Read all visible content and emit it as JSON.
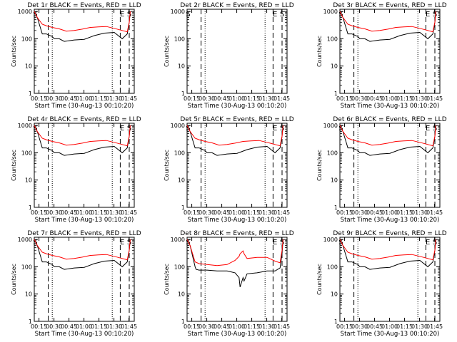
{
  "common": {
    "ylabel": "Counts/sec",
    "xlabel": "Start Time (30-Aug-13 00:10:20)",
    "xticks": [
      "00:15",
      "00:30",
      "00:45",
      "01:00",
      "01:15",
      "01:30",
      "01:45"
    ],
    "yticks": [
      "1",
      "10",
      "100",
      "1000"
    ],
    "colors": {
      "events": "#000000",
      "lld": "#ff0000"
    }
  },
  "chart_data": [
    {
      "type": "line",
      "title": "Det 1r BLACK = Events, RED = LLD",
      "x_unit": "minutes since 00:10:20",
      "xlim": [
        0,
        100
      ],
      "ylim": [
        1,
        1200
      ],
      "yscale": "log",
      "markers": [
        {
          "label": "S",
          "x": 1.0
        },
        {
          "label": "E",
          "x": 88.0
        },
        {
          "label": "S",
          "x": 95.0
        }
      ],
      "series": [
        {
          "name": "Events",
          "x": [
            0,
            3,
            8,
            9,
            12,
            18,
            20,
            25,
            30,
            40,
            50,
            60,
            70,
            80,
            88,
            93,
            95,
            96
          ],
          "y": [
            1000,
            600,
            150,
            150,
            150,
            120,
            100,
            100,
            80,
            90,
            95,
            130,
            160,
            170,
            100,
            150,
            400,
            1000
          ]
        },
        {
          "name": "LLD",
          "x": [
            0,
            3,
            8,
            12,
            18,
            25,
            32,
            40,
            48,
            56,
            64,
            72,
            80,
            88,
            93,
            95,
            96
          ],
          "y": [
            1000,
            600,
            340,
            300,
            260,
            230,
            190,
            200,
            225,
            260,
            270,
            280,
            240,
            200,
            180,
            400,
            1000
          ]
        }
      ]
    },
    {
      "type": "line",
      "title": "Det 2r BLACK = Events, RED = LLD",
      "x_unit": "minutes since 00:10:20",
      "xlim": [
        0,
        100
      ],
      "ylim": [
        1,
        1200
      ],
      "yscale": "log",
      "markers": [
        {
          "label": "S",
          "x": 1.0
        },
        {
          "label": "E",
          "x": 88.0
        },
        {
          "label": "S",
          "x": 95.0
        }
      ],
      "series": []
    },
    {
      "type": "line",
      "title": "Det 3r BLACK = Events, RED = LLD",
      "x_unit": "minutes since 00:10:20",
      "xlim": [
        0,
        100
      ],
      "ylim": [
        1,
        1200
      ],
      "yscale": "log",
      "markers": [
        {
          "label": "S",
          "x": 1.0
        },
        {
          "label": "E",
          "x": 88.0
        },
        {
          "label": "S",
          "x": 95.0
        }
      ],
      "series": [
        {
          "name": "Events",
          "x": [
            0,
            3,
            8,
            9,
            12,
            18,
            20,
            25,
            30,
            40,
            50,
            60,
            70,
            80,
            88,
            93,
            95,
            96
          ],
          "y": [
            1000,
            600,
            150,
            150,
            150,
            120,
            100,
            100,
            80,
            90,
            95,
            130,
            160,
            170,
            100,
            150,
            400,
            1000
          ]
        },
        {
          "name": "LLD",
          "x": [
            0,
            3,
            8,
            12,
            18,
            25,
            32,
            40,
            48,
            56,
            64,
            72,
            80,
            88,
            93,
            95,
            96
          ],
          "y": [
            1000,
            600,
            340,
            300,
            260,
            230,
            190,
            200,
            225,
            260,
            270,
            280,
            240,
            200,
            180,
            400,
            1000
          ]
        }
      ]
    },
    {
      "type": "line",
      "title": "Det 4r BLACK = Events, RED = LLD",
      "x_unit": "minutes since 00:10:20",
      "xlim": [
        0,
        100
      ],
      "ylim": [
        1,
        1200
      ],
      "yscale": "log",
      "markers": [
        {
          "label": "S",
          "x": 1.0
        },
        {
          "label": "E",
          "x": 88.0
        },
        {
          "label": "S",
          "x": 95.0
        }
      ],
      "series": [
        {
          "name": "Events",
          "x": [
            0,
            3,
            8,
            9,
            12,
            18,
            20,
            25,
            30,
            40,
            50,
            60,
            70,
            80,
            88,
            93,
            95,
            96
          ],
          "y": [
            1000,
            600,
            150,
            150,
            150,
            120,
            100,
            100,
            80,
            90,
            95,
            130,
            160,
            170,
            100,
            150,
            400,
            1000
          ]
        },
        {
          "name": "LLD",
          "x": [
            0,
            3,
            8,
            12,
            18,
            25,
            32,
            40,
            48,
            56,
            64,
            72,
            80,
            88,
            93,
            95,
            96
          ],
          "y": [
            1000,
            600,
            340,
            300,
            260,
            230,
            190,
            200,
            225,
            260,
            270,
            280,
            240,
            200,
            180,
            400,
            1000
          ]
        }
      ]
    },
    {
      "type": "line",
      "title": "Det 5r BLACK = Events, RED = LLD",
      "x_unit": "minutes since 00:10:20",
      "xlim": [
        0,
        100
      ],
      "ylim": [
        1,
        1200
      ],
      "yscale": "log",
      "markers": [
        {
          "label": "S",
          "x": 1.0
        },
        {
          "label": "E",
          "x": 88.0
        },
        {
          "label": "S",
          "x": 95.0
        }
      ],
      "series": [
        {
          "name": "Events",
          "x": [
            0,
            3,
            8,
            9,
            12,
            18,
            20,
            25,
            30,
            40,
            50,
            60,
            70,
            80,
            88,
            93,
            95,
            96
          ],
          "y": [
            1000,
            600,
            150,
            150,
            150,
            120,
            100,
            100,
            80,
            90,
            95,
            130,
            160,
            170,
            100,
            150,
            400,
            1000
          ]
        },
        {
          "name": "LLD",
          "x": [
            0,
            3,
            8,
            12,
            18,
            25,
            32,
            40,
            48,
            56,
            64,
            72,
            80,
            88,
            93,
            95,
            96
          ],
          "y": [
            1000,
            600,
            340,
            300,
            260,
            230,
            190,
            200,
            225,
            260,
            270,
            280,
            240,
            200,
            180,
            400,
            1000
          ]
        }
      ]
    },
    {
      "type": "line",
      "title": "Det 6r BLACK = Events, RED = LLD",
      "x_unit": "minutes since 00:10:20",
      "xlim": [
        0,
        100
      ],
      "ylim": [
        1,
        1200
      ],
      "yscale": "log",
      "markers": [
        {
          "label": "S",
          "x": 1.0
        },
        {
          "label": "E",
          "x": 88.0
        },
        {
          "label": "S",
          "x": 95.0
        }
      ],
      "series": [
        {
          "name": "Events",
          "x": [
            0,
            3,
            8,
            9,
            12,
            18,
            20,
            25,
            30,
            40,
            50,
            60,
            70,
            80,
            88,
            93,
            95,
            96
          ],
          "y": [
            1000,
            600,
            150,
            150,
            150,
            120,
            100,
            100,
            80,
            90,
            95,
            130,
            160,
            170,
            100,
            150,
            400,
            1000
          ]
        },
        {
          "name": "LLD",
          "x": [
            0,
            3,
            8,
            12,
            18,
            25,
            32,
            40,
            48,
            56,
            64,
            72,
            80,
            88,
            93,
            95,
            96
          ],
          "y": [
            1000,
            600,
            340,
            300,
            260,
            230,
            190,
            200,
            225,
            260,
            270,
            280,
            240,
            200,
            180,
            400,
            1000
          ]
        }
      ]
    },
    {
      "type": "line",
      "title": "Det 7r BLACK = Events, RED = LLD",
      "x_unit": "minutes since 00:10:20",
      "xlim": [
        0,
        100
      ],
      "ylim": [
        1,
        1200
      ],
      "yscale": "log",
      "markers": [
        {
          "label": "S",
          "x": 1.0
        },
        {
          "label": "E",
          "x": 88.0
        },
        {
          "label": "S",
          "x": 95.0
        }
      ],
      "series": [
        {
          "name": "Events",
          "x": [
            0,
            3,
            8,
            9,
            12,
            18,
            20,
            25,
            30,
            40,
            50,
            60,
            70,
            80,
            88,
            93,
            95,
            96
          ],
          "y": [
            1000,
            600,
            150,
            150,
            150,
            120,
            100,
            100,
            80,
            90,
            95,
            130,
            160,
            170,
            100,
            150,
            400,
            1000
          ]
        },
        {
          "name": "LLD",
          "x": [
            0,
            3,
            8,
            12,
            18,
            25,
            32,
            40,
            48,
            56,
            64,
            72,
            80,
            88,
            93,
            95,
            96
          ],
          "y": [
            1000,
            600,
            340,
            300,
            260,
            230,
            190,
            200,
            225,
            260,
            270,
            280,
            240,
            200,
            180,
            400,
            1000
          ]
        }
      ]
    },
    {
      "type": "line",
      "title": "Det 8r BLACK = Events, RED = LLD",
      "x_unit": "minutes since 00:10:20",
      "xlim": [
        0,
        100
      ],
      "ylim": [
        1,
        1200
      ],
      "yscale": "log",
      "markers": [
        {
          "label": "S",
          "x": 1.0
        },
        {
          "label": "E",
          "x": 88.0
        },
        {
          "label": "S",
          "x": 95.0
        }
      ],
      "series": [
        {
          "name": "Events",
          "x": [
            0,
            3,
            8,
            9,
            12,
            20,
            30,
            40,
            48,
            52,
            53,
            56,
            57,
            60,
            70,
            80,
            88,
            93,
            95,
            96
          ],
          "y": [
            1000,
            600,
            100,
            80,
            75,
            75,
            70,
            70,
            60,
            40,
            18,
            40,
            30,
            55,
            60,
            70,
            70,
            90,
            300,
            1000
          ]
        },
        {
          "name": "LLD",
          "x": [
            0,
            3,
            8,
            12,
            20,
            30,
            40,
            48,
            52,
            53,
            56,
            57,
            60,
            70,
            80,
            88,
            93,
            95,
            96
          ],
          "y": [
            1000,
            600,
            150,
            130,
            120,
            110,
            120,
            170,
            240,
            300,
            380,
            300,
            200,
            220,
            220,
            160,
            140,
            400,
            1000
          ]
        }
      ]
    },
    {
      "type": "line",
      "title": "Det 9r BLACK = Events, RED = LLD",
      "x_unit": "minutes since 00:10:20",
      "xlim": [
        0,
        100
      ],
      "ylim": [
        1,
        1200
      ],
      "yscale": "log",
      "markers": [
        {
          "label": "S",
          "x": 1.0
        },
        {
          "label": "E",
          "x": 88.0
        },
        {
          "label": "S",
          "x": 95.0
        }
      ],
      "series": [
        {
          "name": "Events",
          "x": [
            0,
            3,
            8,
            9,
            12,
            18,
            20,
            25,
            30,
            40,
            50,
            60,
            70,
            80,
            88,
            93,
            95,
            96
          ],
          "y": [
            1000,
            600,
            150,
            150,
            150,
            120,
            100,
            100,
            80,
            90,
            95,
            130,
            160,
            170,
            100,
            150,
            400,
            1000
          ]
        },
        {
          "name": "LLD",
          "x": [
            0,
            3,
            8,
            12,
            18,
            25,
            32,
            40,
            48,
            56,
            64,
            72,
            80,
            88,
            93,
            95,
            96
          ],
          "y": [
            1000,
            600,
            340,
            300,
            260,
            230,
            190,
            200,
            225,
            260,
            270,
            280,
            240,
            200,
            180,
            400,
            1000
          ]
        }
      ]
    }
  ]
}
